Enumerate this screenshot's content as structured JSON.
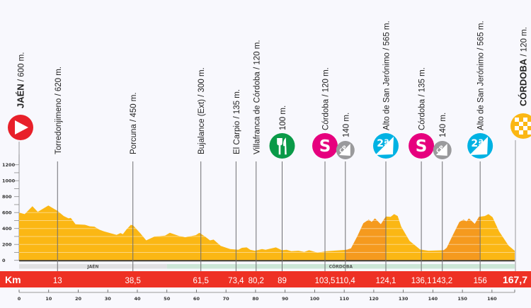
{
  "chart_data": {
    "type": "area",
    "title": "",
    "xlabel": "Km",
    "ylabel": "",
    "xlim": [
      0,
      167.7
    ],
    "ylim": [
      0,
      1200
    ],
    "y_ticks": [
      0,
      200,
      400,
      600,
      800,
      1000,
      1200
    ],
    "x_ticks": [
      0,
      10,
      20,
      30,
      40,
      50,
      60,
      70,
      80,
      90,
      100,
      110,
      120,
      130,
      140,
      150,
      160
    ],
    "grid": true,
    "profile": [
      [
        0,
        600
      ],
      [
        1.9,
        580
      ],
      [
        4.5,
        680
      ],
      [
        6.3,
        609
      ],
      [
        9.9,
        689
      ],
      [
        13,
        620
      ],
      [
        15.1,
        556
      ],
      [
        16.7,
        527
      ],
      [
        17.5,
        533
      ],
      [
        19.1,
        452
      ],
      [
        22.3,
        446
      ],
      [
        23.9,
        428
      ],
      [
        25.5,
        423
      ],
      [
        27.1,
        387
      ],
      [
        28.7,
        364
      ],
      [
        33,
        320
      ],
      [
        34.3,
        343
      ],
      [
        35.1,
        328
      ],
      [
        36.3,
        387
      ],
      [
        37.8,
        446
      ],
      [
        38.6,
        438
      ],
      [
        41,
        340
      ],
      [
        43,
        251
      ],
      [
        45.8,
        299
      ],
      [
        49.4,
        310
      ],
      [
        51,
        346
      ],
      [
        54.2,
        305
      ],
      [
        56.2,
        290
      ],
      [
        59.8,
        316
      ],
      [
        61,
        346
      ],
      [
        63,
        296
      ],
      [
        64.6,
        251
      ],
      [
        65.8,
        260
      ],
      [
        68.2,
        181
      ],
      [
        71.4,
        142
      ],
      [
        74.2,
        133
      ],
      [
        75.4,
        157
      ],
      [
        77,
        163
      ],
      [
        78.2,
        133
      ],
      [
        79.8,
        121
      ],
      [
        82.2,
        142
      ],
      [
        83.4,
        133
      ],
      [
        86.9,
        163
      ],
      [
        88.9,
        127
      ],
      [
        90.5,
        133
      ],
      [
        92.1,
        115
      ],
      [
        94.5,
        121
      ],
      [
        96.5,
        106
      ],
      [
        98.1,
        127
      ],
      [
        100.9,
        97
      ],
      [
        104.1,
        115
      ],
      [
        110.9,
        133
      ],
      [
        112.3,
        151
      ],
      [
        114.5,
        305
      ],
      [
        116.5,
        467
      ],
      [
        118.3,
        511
      ],
      [
        119.3,
        482
      ],
      [
        120.4,
        526
      ],
      [
        122.4,
        452
      ],
      [
        124.1,
        550
      ],
      [
        125.7,
        547
      ],
      [
        126.9,
        580
      ],
      [
        128.1,
        556
      ],
      [
        129.3,
        423
      ],
      [
        132.1,
        245
      ],
      [
        135.7,
        136
      ],
      [
        138.5,
        121
      ],
      [
        143.7,
        127
      ],
      [
        144.7,
        157
      ],
      [
        146.8,
        320
      ],
      [
        149,
        482
      ],
      [
        150.4,
        511
      ],
      [
        151.4,
        488
      ],
      [
        152.2,
        526
      ],
      [
        154.2,
        458
      ],
      [
        155.6,
        547
      ],
      [
        157.6,
        556
      ],
      [
        158.8,
        580
      ],
      [
        160.2,
        541
      ],
      [
        162.4,
        364
      ],
      [
        165.6,
        186
      ],
      [
        167.7,
        120
      ]
    ],
    "climbs": [
      [
        110.4,
        124.1
      ],
      [
        143.2,
        156
      ]
    ],
    "regions": [
      {
        "name": "JAÉN",
        "from": 0,
        "to": 50,
        "color": "#e0e0e2"
      },
      {
        "name": "CÓRDOBA",
        "from": 50,
        "to": 167.7,
        "color": "#cce6d6"
      }
    ],
    "waypoints": [
      {
        "km": 0,
        "km_label": "",
        "name": "JAÉN",
        "alt": " / 600 m.",
        "icon": "start",
        "bold": true
      },
      {
        "km": 13,
        "km_label": "13",
        "name": "Torredonjimeno",
        "alt": " / 620 m.",
        "icon": null
      },
      {
        "km": 38.5,
        "km_label": "38,5",
        "name": "Porcuna",
        "alt": " / 450 m.",
        "icon": null
      },
      {
        "km": 61.5,
        "km_label": "61,5",
        "name": "Bujalance (Ext)",
        "alt": " / 300 m.",
        "icon": null
      },
      {
        "km": 73.4,
        "km_label": "73,4",
        "name": "El Carpio",
        "alt": " / 135 m.",
        "icon": null
      },
      {
        "km": 80.2,
        "km_label": "80,2",
        "name": "Villafranca de Córdoba",
        "alt": " / 120 m.",
        "icon": null
      },
      {
        "km": 89,
        "km_label": "89",
        "name": "",
        "alt": "100 m.",
        "icon": "feed"
      },
      {
        "km": 103.5,
        "km_label": "103,5",
        "name": "Córdoba",
        "alt": " / 120 m.",
        "icon": "sprint"
      },
      {
        "km": 110.4,
        "km_label": "110,4",
        "name": "",
        "alt": "140 m.",
        "icon": "cp"
      },
      {
        "km": 124.1,
        "km_label": "124,1",
        "name": "Alto de San Jerónimo",
        "alt": " / 565 m.",
        "icon": "cat2"
      },
      {
        "km": 136.1,
        "km_label": "136,1",
        "name": "Córdoba",
        "alt": " / 135 m.",
        "icon": "sprint"
      },
      {
        "km": 143.2,
        "km_label": "143,2",
        "name": "",
        "alt": "140 m.",
        "icon": "cp"
      },
      {
        "km": 156,
        "km_label": "156",
        "name": "Alto de San Jerónimo",
        "alt": " / 565 m.",
        "icon": "cat2"
      },
      {
        "km": 167.7,
        "km_label": "167,7",
        "name": "CÓRDOBA",
        "alt": " / 120 m.",
        "icon": "finish",
        "bold": true
      }
    ],
    "icon_text": {
      "sprint": "S",
      "cp": "CP",
      "cat2": "2ª"
    }
  },
  "colors": {
    "profile": "#fbb714",
    "climb": "#f59a1e",
    "km_bar": "#ee3124",
    "start": "#e8202a",
    "feed": "#0a9a48",
    "sprint": "#e6007e",
    "cp": "#9a9a9c",
    "cat2": "#00b2e3",
    "finish": "#fbb714"
  }
}
